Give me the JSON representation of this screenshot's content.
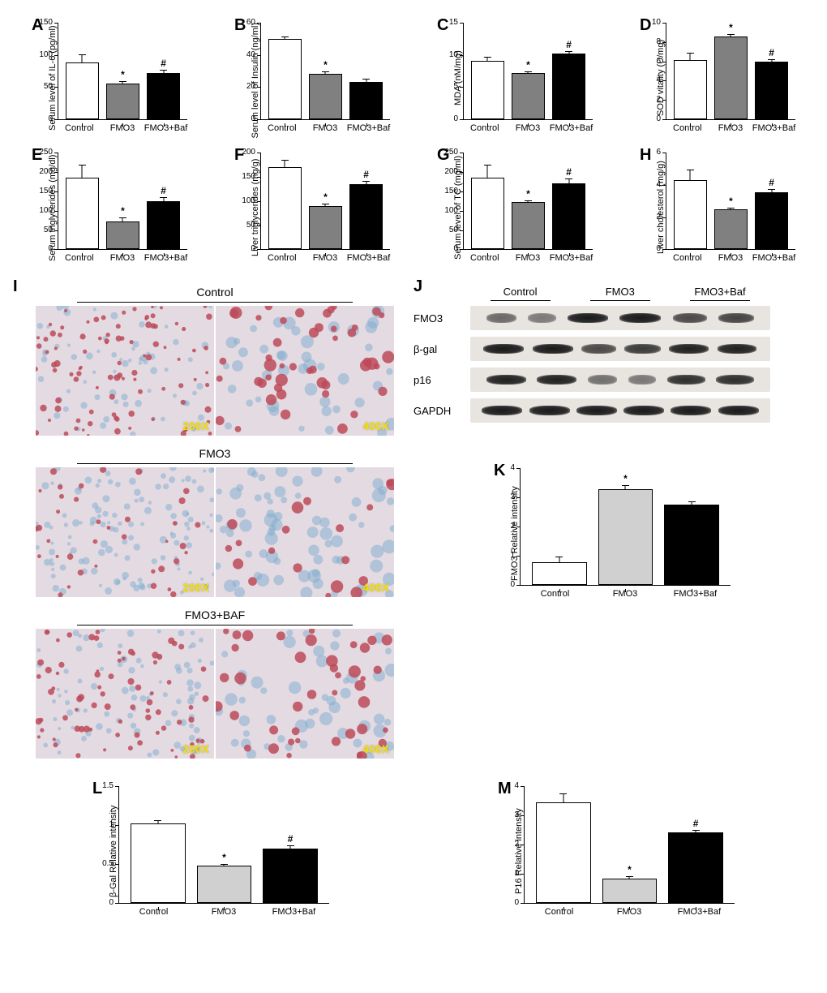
{
  "chart_groups": [
    "Control",
    "FMO3",
    "FMO3+Baf"
  ],
  "bar_colors": {
    "control": "#ffffff",
    "fmo3": "#808080",
    "fmo3baf": "#000000",
    "fmo3_light": "#d0d0d0"
  },
  "border_color": "#000000",
  "background": "#ffffff",
  "A": {
    "label": "A",
    "ylabel": "Serum level of IL-6 (pg/ml)",
    "ymax": 150,
    "ystep": 50,
    "values": [
      88,
      55,
      72
    ],
    "errors": [
      14,
      5,
      6
    ],
    "sig": [
      "",
      "*",
      "#"
    ],
    "colors": [
      "#ffffff",
      "#808080",
      "#000000"
    ]
  },
  "B": {
    "label": "B",
    "ylabel": "Serum level of Insulin (ng/ml)",
    "ymax": 60,
    "ystep": 20,
    "values": [
      50,
      28,
      23
    ],
    "errors": [
      2,
      2,
      2.5
    ],
    "sig": [
      "",
      "*",
      ""
    ],
    "colors": [
      "#ffffff",
      "#808080",
      "#000000"
    ]
  },
  "C": {
    "label": "C",
    "ylabel": "MDA (nM/mg)",
    "ymax": 15,
    "ystep": 5,
    "values": [
      9.1,
      7.2,
      10.2
    ],
    "errors": [
      0.7,
      0.4,
      0.5
    ],
    "sig": [
      "",
      "*",
      "#"
    ],
    "colors": [
      "#ffffff",
      "#808080",
      "#000000"
    ]
  },
  "D": {
    "label": "D",
    "ylabel": "SOD vitality (U/mg)",
    "ymax": 10,
    "ystep": 2,
    "values": [
      6.1,
      8.6,
      6.0
    ],
    "errors": [
      0.9,
      0.3,
      0.3
    ],
    "sig": [
      "",
      "*",
      "#"
    ],
    "colors": [
      "#ffffff",
      "#808080",
      "#000000"
    ]
  },
  "E": {
    "label": "E",
    "ylabel": "Serum triglycerides (mg/dl)",
    "ymax": 250,
    "ystep": 50,
    "values": [
      185,
      72,
      125
    ],
    "errors": [
      36,
      12,
      12
    ],
    "sig": [
      "",
      "*",
      "#"
    ],
    "colors": [
      "#ffffff",
      "#808080",
      "#000000"
    ]
  },
  "F": {
    "label": "F",
    "ylabel": "Liver triglycerides (mg/g)",
    "ymax": 200,
    "ystep": 50,
    "values": [
      170,
      90,
      135
    ],
    "errors": [
      17,
      6,
      8
    ],
    "sig": [
      "",
      "*",
      "#"
    ],
    "colors": [
      "#ffffff",
      "#808080",
      "#000000"
    ]
  },
  "G": {
    "label": "G",
    "ylabel": "Serum level of TC (mg/ml)",
    "ymax": 250,
    "ystep": 50,
    "values": [
      185,
      122,
      172
    ],
    "errors": [
      36,
      8,
      14
    ],
    "sig": [
      "",
      "*",
      "#"
    ],
    "colors": [
      "#ffffff",
      "#808080",
      "#000000"
    ]
  },
  "H": {
    "label": "H",
    "ylabel": "Liver cholesterol (mg/g)",
    "ymax": 6,
    "ystep": 2,
    "values": [
      4.3,
      2.5,
      3.55
    ],
    "errors": [
      0.7,
      0.15,
      0.25
    ],
    "sig": [
      "",
      "*",
      "#"
    ],
    "colors": [
      "#ffffff",
      "#808080",
      "#000000"
    ]
  },
  "I": {
    "label": "I",
    "groups": [
      "Control",
      "FMO3",
      "FMO3+BAF"
    ],
    "zoom_labels": [
      "200X",
      "400X"
    ],
    "zoom_color": "#f5e000",
    "tissue_bg": "#cfa8b8",
    "lipid_red": "#b83a4a",
    "cyto_blue": "#6fa5c9"
  },
  "J": {
    "label": "J",
    "groups": [
      "Control",
      "FMO3",
      "FMO3+Baf"
    ],
    "proteins": [
      "FMO3",
      "β-gal",
      "p16",
      "GAPDH"
    ],
    "strip_bg": "#e8e4e0",
    "band_color": "#1a1a1a",
    "bands": {
      "FMO3": [
        0.4,
        0.28,
        1.0,
        1.05,
        0.65,
        0.7
      ],
      "b-gal": [
        1.0,
        1.0,
        0.65,
        0.75,
        0.95,
        0.95
      ],
      "p16": [
        0.95,
        0.95,
        0.35,
        0.3,
        0.85,
        0.85
      ],
      "GAPDH": [
        1.0,
        1.0,
        1.0,
        1.0,
        1.0,
        1.0
      ]
    }
  },
  "K": {
    "label": "K",
    "ylabel": "FMO3 Relative intensity",
    "ymax": 4,
    "ystep": 1,
    "values": [
      0.8,
      3.3,
      2.75
    ],
    "errors": [
      0.2,
      0.15,
      0.15
    ],
    "sig": [
      "",
      "*",
      ""
    ],
    "colors": [
      "#ffffff",
      "#d0d0d0",
      "#000000"
    ]
  },
  "L": {
    "label": "L",
    "ylabel": "β-Gal Relative intensity",
    "ymax": 1.5,
    "ystep": 0.5,
    "values": [
      1.03,
      0.48,
      0.7
    ],
    "errors": [
      0.05,
      0.04,
      0.05
    ],
    "sig": [
      "",
      "*",
      "#"
    ],
    "colors": [
      "#ffffff",
      "#d0d0d0",
      "#000000"
    ]
  },
  "M": {
    "label": "M",
    "ylabel": "P16 Relative intensity",
    "ymax": 4,
    "ystep": 1,
    "values": [
      3.45,
      0.85,
      2.42
    ],
    "errors": [
      0.35,
      0.12,
      0.12
    ],
    "sig": [
      "",
      "*",
      "#"
    ],
    "colors": [
      "#ffffff",
      "#d0d0d0",
      "#000000"
    ]
  },
  "layout": {
    "top_chart_width": 160,
    "top_chart_height": 120,
    "wide_chart_width": 260,
    "wide_chart_height": 145
  }
}
